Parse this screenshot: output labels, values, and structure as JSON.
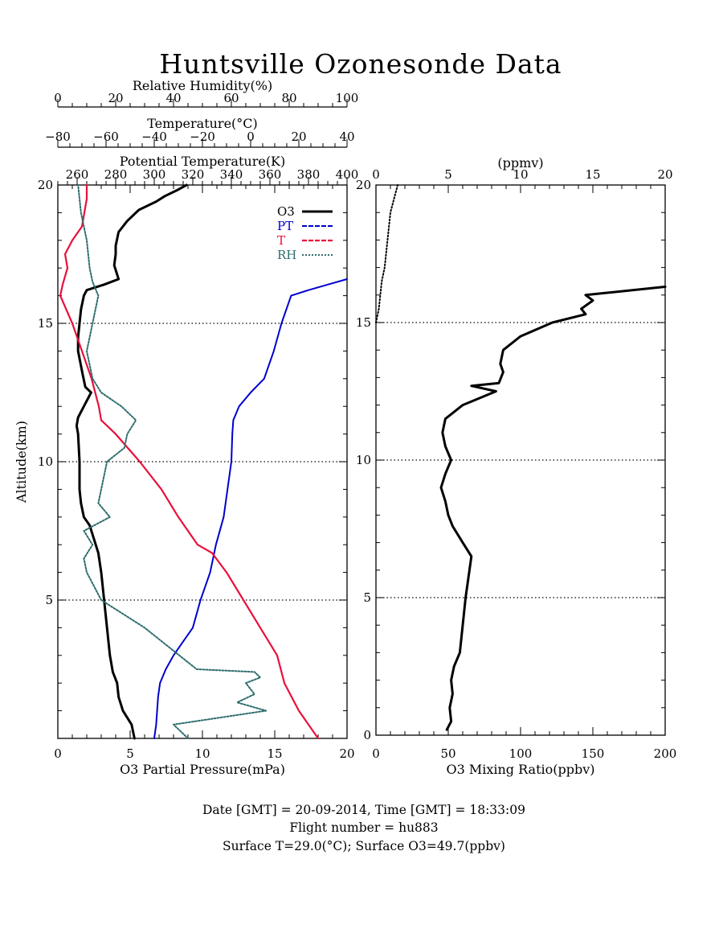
{
  "title": "Huntsville Ozonesonde Data",
  "colors": {
    "o3": "#000000",
    "pt": "#0000cc",
    "t": "#e8103c",
    "rh": "#2e6e6e"
  },
  "footer": {
    "line1": "Date [GMT] = 20-09-2014,  Time [GMT] = 18:33:09",
    "line2": "Flight number = hu883",
    "line3": "Surface T=29.0(°C); Surface O3=49.7(ppbv)"
  },
  "chart_data": [
    {
      "type": "line",
      "panel": "left",
      "ylabel": "Altitude(km)",
      "ylim": [
        0,
        20
      ],
      "yticks": [
        5,
        10,
        15,
        20
      ],
      "grid_y": [
        5,
        10,
        15
      ],
      "legend_position": "top-right",
      "axes": {
        "o3": {
          "label": "O3 Partial Pressure(mPa)",
          "lim": [
            0,
            20
          ],
          "ticks": [
            "0",
            "5",
            "10",
            "15",
            "20"
          ]
        },
        "rh": {
          "label": "Relative Humidity(%)",
          "lim": [
            0,
            100
          ],
          "ticks": [
            "0",
            "20",
            "40",
            "60",
            "80",
            "100"
          ]
        },
        "t": {
          "label": "Temperature(°C)",
          "lim": [
            -80,
            40
          ],
          "ticks": [
            "-80",
            "-60",
            "-40",
            "-20",
            "0",
            "20",
            "40"
          ]
        },
        "pt": {
          "label": "Potential Temperature(K)",
          "lim": [
            250,
            400
          ],
          "ticks": [
            "260",
            "280",
            "300",
            "320",
            "340",
            "360",
            "380",
            "400"
          ]
        }
      },
      "series": [
        {
          "name": "O3",
          "key": "o3",
          "axis": "o3",
          "points": [
            [
              5.3,
              0
            ],
            [
              5.1,
              0.5
            ],
            [
              4.5,
              1
            ],
            [
              4.2,
              1.5
            ],
            [
              4.1,
              2
            ],
            [
              3.8,
              2.4
            ],
            [
              3.6,
              3
            ],
            [
              3.4,
              4
            ],
            [
              3.2,
              5
            ],
            [
              3.0,
              6
            ],
            [
              2.8,
              6.7
            ],
            [
              2.5,
              7.2
            ],
            [
              2.2,
              7.7
            ],
            [
              1.8,
              8
            ],
            [
              1.6,
              8.5
            ],
            [
              1.5,
              9
            ],
            [
              1.5,
              10
            ],
            [
              1.4,
              11
            ],
            [
              1.3,
              11.3
            ],
            [
              1.4,
              11.6
            ],
            [
              1.8,
              12
            ],
            [
              2.3,
              12.5
            ],
            [
              1.9,
              12.7
            ],
            [
              1.7,
              13.2
            ],
            [
              1.4,
              14
            ],
            [
              1.4,
              14.5
            ],
            [
              1.5,
              15
            ],
            [
              1.6,
              15.5
            ],
            [
              1.8,
              16
            ],
            [
              2.0,
              16.2
            ],
            [
              3.2,
              16.4
            ],
            [
              4.2,
              16.6
            ],
            [
              3.9,
              17.1
            ],
            [
              4.0,
              17.5
            ],
            [
              4.0,
              17.8
            ],
            [
              4.2,
              18.3
            ],
            [
              4.8,
              18.7
            ],
            [
              5.6,
              19.1
            ],
            [
              6.8,
              19.4
            ],
            [
              7.4,
              19.6
            ],
            [
              8.2,
              19.8
            ],
            [
              8.9,
              20
            ]
          ]
        },
        {
          "name": "PT",
          "key": "pt",
          "axis": "pt",
          "points": [
            [
              300,
              0
            ],
            [
              301,
              0.5
            ],
            [
              302,
              1.5
            ],
            [
              303,
              2
            ],
            [
              306,
              2.5
            ],
            [
              310,
              3
            ],
            [
              315,
              3.5
            ],
            [
              320,
              4
            ],
            [
              324,
              5
            ],
            [
              329,
              6
            ],
            [
              332,
              7
            ],
            [
              336,
              8
            ],
            [
              338,
              9
            ],
            [
              340,
              10
            ],
            [
              340.5,
              11
            ],
            [
              341,
              11.5
            ],
            [
              344,
              12
            ],
            [
              350,
              12.5
            ],
            [
              357,
              13
            ],
            [
              362,
              14
            ],
            [
              366,
              15
            ],
            [
              371,
              16
            ],
            [
              380,
              16.2
            ],
            [
              390,
              16.4
            ],
            [
              400,
              16.6
            ]
          ]
        },
        {
          "name": "T",
          "key": "t",
          "axis": "t",
          "points": [
            [
              28,
              0
            ],
            [
              20,
              1
            ],
            [
              14,
              2
            ],
            [
              11,
              3
            ],
            [
              4,
              4
            ],
            [
              -3,
              5
            ],
            [
              -10,
              6
            ],
            [
              -16,
              6.7
            ],
            [
              -22,
              7
            ],
            [
              -30,
              8
            ],
            [
              -37,
              9
            ],
            [
              -46,
              10
            ],
            [
              -56,
              11
            ],
            [
              -62,
              11.5
            ],
            [
              -63,
              12
            ],
            [
              -66,
              13
            ],
            [
              -70,
              14
            ],
            [
              -74,
              15
            ],
            [
              -79,
              16
            ],
            [
              -78,
              16.4
            ],
            [
              -76,
              17
            ],
            [
              -77,
              17.5
            ],
            [
              -74,
              18
            ],
            [
              -70,
              18.5
            ],
            [
              -69,
              19
            ],
            [
              -68,
              19.5
            ],
            [
              -68,
              20
            ]
          ]
        },
        {
          "name": "RH",
          "key": "rh",
          "axis": "rh",
          "points": [
            [
              45,
              0
            ],
            [
              40,
              0.5
            ],
            [
              72,
              1
            ],
            [
              62,
              1.3
            ],
            [
              68,
              1.6
            ],
            [
              65,
              2
            ],
            [
              70,
              2.2
            ],
            [
              68,
              2.4
            ],
            [
              48,
              2.5
            ],
            [
              42,
              3
            ],
            [
              30,
              4
            ],
            [
              15,
              5
            ],
            [
              10,
              6
            ],
            [
              9,
              6.5
            ],
            [
              12,
              7
            ],
            [
              9,
              7.5
            ],
            [
              18,
              8
            ],
            [
              14,
              8.5
            ],
            [
              15,
              9
            ],
            [
              17,
              10
            ],
            [
              23,
              10.5
            ],
            [
              24,
              11
            ],
            [
              27,
              11.5
            ],
            [
              22,
              12
            ],
            [
              15,
              12.5
            ],
            [
              12,
              13
            ],
            [
              10,
              14
            ],
            [
              12,
              15
            ],
            [
              14,
              16
            ],
            [
              12,
              16.5
            ],
            [
              11,
              17
            ],
            [
              10,
              18
            ],
            [
              8,
              19
            ],
            [
              7,
              20
            ]
          ]
        }
      ]
    },
    {
      "type": "line",
      "panel": "right",
      "ylim": [
        0,
        20
      ],
      "yticks": [
        0,
        5,
        10,
        15,
        20
      ],
      "grid_y": [
        5,
        10,
        15
      ],
      "axes": {
        "ppbv": {
          "label": "O3 Mixing Ratio(ppbv)",
          "lim": [
            0,
            200
          ],
          "ticks": [
            "0",
            "50",
            "100",
            "150",
            "200"
          ]
        },
        "ppmv": {
          "label": "(ppmv)",
          "lim": [
            0,
            20
          ],
          "ticks": [
            "0",
            "5",
            "10",
            "15",
            "20"
          ]
        }
      },
      "series": [
        {
          "key": "o3",
          "axis": "ppbv",
          "style": "solid",
          "points": [
            [
              49,
              0.2
            ],
            [
              52,
              0.5
            ],
            [
              51,
              1
            ],
            [
              53,
              1.5
            ],
            [
              52,
              2
            ],
            [
              54,
              2.5
            ],
            [
              58,
              3
            ],
            [
              62,
              5
            ],
            [
              66,
              6.5
            ],
            [
              60,
              7
            ],
            [
              53,
              7.6
            ],
            [
              50,
              8
            ],
            [
              48,
              8.5
            ],
            [
              45,
              9
            ],
            [
              48,
              9.5
            ],
            [
              52,
              10
            ],
            [
              48,
              10.5
            ],
            [
              46,
              11
            ],
            [
              48,
              11.5
            ],
            [
              60,
              12
            ],
            [
              83,
              12.5
            ],
            [
              66,
              12.7
            ],
            [
              85,
              12.8
            ],
            [
              88,
              13.2
            ],
            [
              86,
              13.5
            ],
            [
              88,
              14
            ],
            [
              100,
              14.5
            ],
            [
              122,
              15
            ],
            [
              145,
              15.3
            ],
            [
              142,
              15.5
            ],
            [
              150,
              15.8
            ],
            [
              145,
              16
            ],
            [
              200,
              16.3
            ]
          ]
        },
        {
          "key": "o3_ppmv",
          "axis": "ppmv",
          "style": "dotted",
          "points": [
            [
              0,
              15
            ],
            [
              0.2,
              15.5
            ],
            [
              0.3,
              16
            ],
            [
              0.4,
              16.5
            ],
            [
              0.6,
              17
            ],
            [
              0.8,
              18
            ],
            [
              1.0,
              19
            ],
            [
              1.5,
              20
            ]
          ]
        }
      ]
    }
  ]
}
